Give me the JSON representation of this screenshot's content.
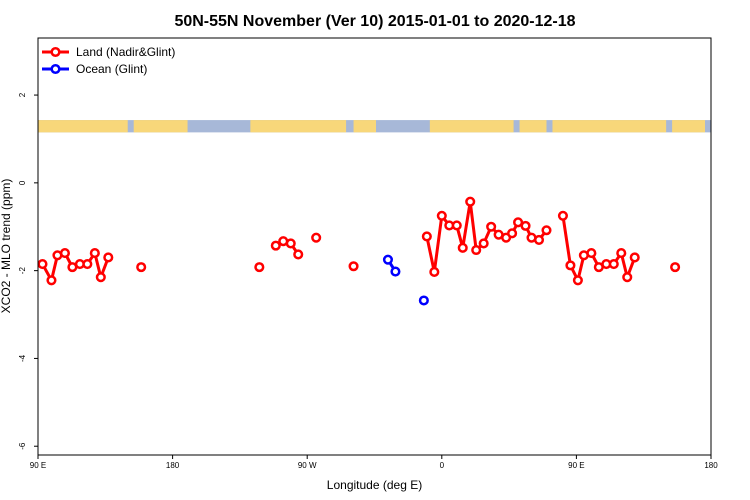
{
  "chart_data": {
    "type": "line",
    "title": "50N-55N November (Ver 10)   2015-01-01 to 2020-12-18",
    "xlabel": "Longitude (deg E)",
    "ylabel": "XCO2 - MLO trend (ppm)",
    "xlim": [
      90,
      540
    ],
    "ylim": [
      -6.2,
      3.3
    ],
    "x_ticks": [
      {
        "value": 90,
        "label": "90 E"
      },
      {
        "value": 180,
        "label": "180"
      },
      {
        "value": 270,
        "label": "90 W"
      },
      {
        "value": 360,
        "label": "0"
      },
      {
        "value": 450,
        "label": "90 E"
      },
      {
        "value": 540,
        "label": "180"
      }
    ],
    "y_ticks": [
      {
        "value": 2,
        "label": "2"
      },
      {
        "value": 0,
        "label": "0"
      },
      {
        "value": -2,
        "label": "-2"
      },
      {
        "value": -4,
        "label": "-4"
      },
      {
        "value": -6,
        "label": "-6"
      }
    ],
    "map_strip": {
      "y_top": 1.43,
      "y_bottom": 1.15,
      "ocean_color": "#a7b8d8",
      "land_color": "#f8d77a"
    },
    "legend": [
      {
        "label": "Land (Nadir&Glint)",
        "color": "#ff0000"
      },
      {
        "label": "Ocean (Glint)",
        "color": "#0000ff"
      }
    ],
    "series": [
      {
        "name": "Land (Nadir&Glint)",
        "color": "#ff0000",
        "segments": [
          [
            [
              93,
              -1.85
            ],
            [
              99,
              -2.22
            ],
            [
              103,
              -1.65
            ],
            [
              108,
              -1.6
            ],
            [
              113,
              -1.92
            ],
            [
              118,
              -1.85
            ],
            [
              123,
              -1.85
            ],
            [
              128,
              -1.6
            ],
            [
              132,
              -2.15
            ],
            [
              137,
              -1.7
            ]
          ],
          [
            [
              159,
              -1.92
            ]
          ],
          [
            [
              238,
              -1.92
            ]
          ],
          [
            [
              249,
              -1.43
            ],
            [
              254,
              -1.33
            ],
            [
              259,
              -1.38
            ],
            [
              264,
              -1.63
            ]
          ],
          [
            [
              276,
              -1.25
            ]
          ],
          [
            [
              301,
              -1.9
            ]
          ],
          [
            [
              350,
              -1.22
            ],
            [
              355,
              -2.03
            ],
            [
              360,
              -0.75
            ],
            [
              365,
              -0.97
            ],
            [
              370,
              -0.97
            ],
            [
              374,
              -1.48
            ],
            [
              379,
              -0.43
            ],
            [
              383,
              -1.53
            ],
            [
              388,
              -1.38
            ],
            [
              393,
              -1.0
            ],
            [
              398,
              -1.18
            ],
            [
              403,
              -1.25
            ],
            [
              407,
              -1.15
            ],
            [
              411,
              -0.9
            ],
            [
              416,
              -0.98
            ],
            [
              420,
              -1.25
            ],
            [
              425,
              -1.3
            ],
            [
              430,
              -1.08
            ]
          ],
          [
            [
              441,
              -0.75
            ],
            [
              446,
              -1.88
            ],
            [
              451,
              -2.22
            ],
            [
              455,
              -1.65
            ],
            [
              460,
              -1.6
            ],
            [
              465,
              -1.92
            ],
            [
              470,
              -1.85
            ],
            [
              475,
              -1.85
            ],
            [
              480,
              -1.6
            ],
            [
              484,
              -2.15
            ],
            [
              489,
              -1.7
            ]
          ],
          [
            [
              516,
              -1.92
            ]
          ]
        ]
      },
      {
        "name": "Ocean (Glint)",
        "color": "#0000ff",
        "segments": [
          [
            [
              324,
              -1.75
            ],
            [
              329,
              -2.02
            ]
          ],
          [
            [
              348,
              -2.68
            ]
          ]
        ]
      }
    ]
  }
}
